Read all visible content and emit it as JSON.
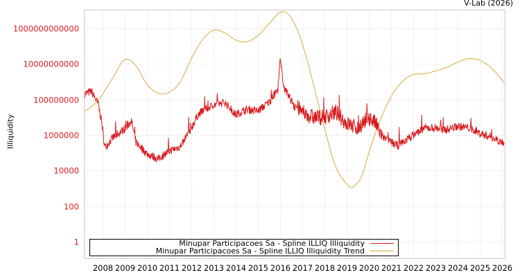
{
  "credit": "V-Lab (2026)",
  "colors": {
    "series": "#d7191c",
    "trend": "#d4aa3c",
    "ytick": "#d7191c",
    "grid": "#c8c8c8",
    "frame": "#c8c8c8"
  },
  "legend": [
    {
      "label": "Minupar Participacoes Sa - Spline ILLIQ Illiquidity",
      "color": "#d7191c"
    },
    {
      "label": "Minupar Participacoes Sa - Spline ILLIQ Illiquidity Trend",
      "color": "#d4aa3c"
    }
  ],
  "chart_data": {
    "type": "line",
    "title": "",
    "xlabel": "",
    "ylabel": "Illiquidity",
    "yscale": "log",
    "ylim": [
      0.1,
      20000000000000
    ],
    "xlim": [
      2007.2,
      2026.1
    ],
    "x_ticks": [
      "2008",
      "2009",
      "2010",
      "2011",
      "2012",
      "2013",
      "2014",
      "2015",
      "2016",
      "2017",
      "2018",
      "2019",
      "2020",
      "2021",
      "2022",
      "2023",
      "2024",
      "2025",
      "2026"
    ],
    "y_ticks": [
      "1",
      "100",
      "10000",
      "1000000",
      "100000000",
      "10000000000",
      "1000000000000"
    ],
    "y_tick_values": [
      1,
      100,
      10000,
      1000000,
      100000000,
      10000000000,
      1000000000000
    ],
    "grid": true,
    "legend_position": "bottom-inside",
    "series": [
      {
        "name": "Minupar Participacoes Sa - Spline ILLIQ Illiquidity",
        "x": [
          2007.2,
          2007.5,
          2007.8,
          2007.95,
          2008.1,
          2008.5,
          2009.0,
          2009.3,
          2009.5,
          2010.0,
          2010.5,
          2011.0,
          2011.5,
          2012.0,
          2012.3,
          2012.5,
          2013.0,
          2013.5,
          2014.0,
          2014.5,
          2015.0,
          2015.5,
          2015.9,
          2016.0,
          2016.2,
          2016.5,
          2017.0,
          2017.5,
          2018.0,
          2018.5,
          2019.0,
          2019.5,
          2020.0,
          2020.3,
          2020.6,
          2021.0,
          2021.3,
          2022.0,
          2022.5,
          2023.0,
          2023.5,
          2024.0,
          2024.5,
          2025.0,
          2025.5,
          2026.0,
          2026.1
        ],
        "log10_values": [
          8.33,
          8.45,
          7.75,
          6.8,
          5.3,
          5.9,
          6.35,
          6.8,
          5.6,
          4.95,
          4.65,
          5.1,
          5.35,
          6.4,
          7.15,
          7.35,
          7.7,
          7.85,
          7.15,
          7.45,
          7.35,
          7.85,
          8.55,
          10.2,
          8.55,
          7.95,
          7.25,
          7.0,
          7.0,
          7.3,
          6.65,
          6.4,
          7.0,
          6.65,
          5.9,
          5.6,
          5.4,
          6.0,
          6.4,
          6.4,
          6.3,
          6.5,
          6.4,
          6.1,
          5.9,
          5.6,
          5.5
        ]
      },
      {
        "name": "Minupar Participacoes Sa - Spline ILLIQ Illiquidity Trend",
        "x": [
          2007.2,
          2007.8,
          2008.5,
          2009.0,
          2009.5,
          2010.0,
          2010.5,
          2011.0,
          2011.5,
          2012.0,
          2012.5,
          2013.0,
          2013.5,
          2014.0,
          2014.5,
          2015.0,
          2015.5,
          2016.0,
          2016.4,
          2016.8,
          2017.2,
          2017.6,
          2018.0,
          2018.5,
          2019.0,
          2019.3,
          2019.7,
          2020.0,
          2020.5,
          2021.0,
          2021.5,
          2022.0,
          2022.5,
          2023.0,
          2023.5,
          2024.0,
          2024.5,
          2025.0,
          2025.5,
          2026.0,
          2026.1
        ],
        "log10_values": [
          7.33,
          7.95,
          9.3,
          10.25,
          9.9,
          8.85,
          8.35,
          8.4,
          9.0,
          10.3,
          11.35,
          11.9,
          11.75,
          11.35,
          11.25,
          11.6,
          12.25,
          12.9,
          12.75,
          11.85,
          10.3,
          8.35,
          6.4,
          4.25,
          3.25,
          3.08,
          3.75,
          5.0,
          6.8,
          8.15,
          9.0,
          9.4,
          9.45,
          9.6,
          9.8,
          10.1,
          10.3,
          10.2,
          9.8,
          9.1,
          8.9
        ]
      }
    ]
  }
}
